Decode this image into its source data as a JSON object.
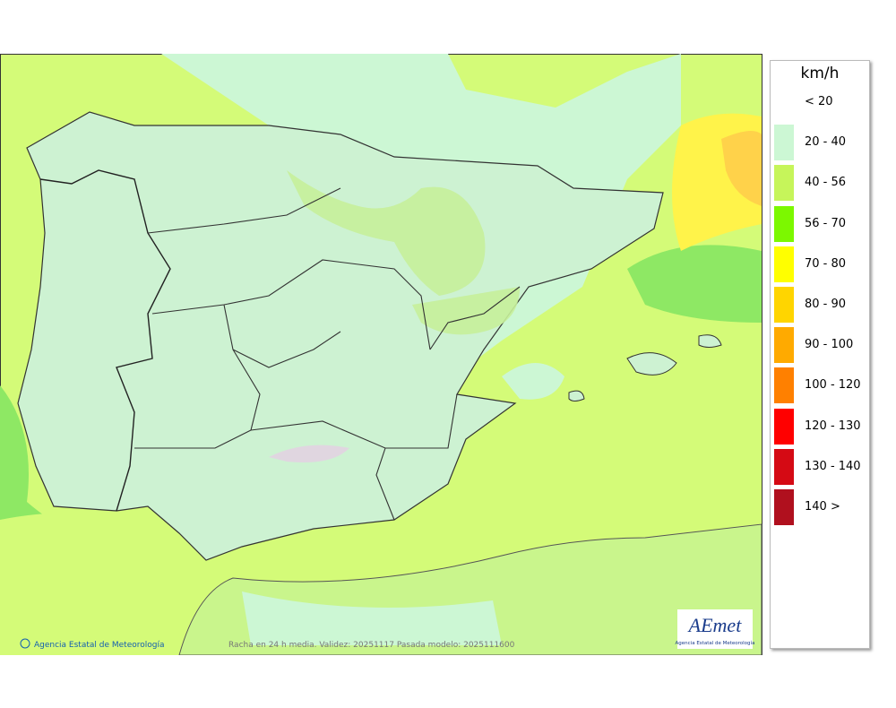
{
  "legend": {
    "unit": "km/h",
    "items": [
      {
        "label": "< 20",
        "color": "#ffffff"
      },
      {
        "label": "20 - 40",
        "color": "#ccf7d4"
      },
      {
        "label": "40 - 56",
        "color": "#c6f55a"
      },
      {
        "label": "56 - 70",
        "color": "#7cf800"
      },
      {
        "label": "70 - 80",
        "color": "#ffff00"
      },
      {
        "label": "80 - 90",
        "color": "#ffd500"
      },
      {
        "label": "90 - 100",
        "color": "#ffaa00"
      },
      {
        "label": "100 - 120",
        "color": "#ff8000"
      },
      {
        "label": "120 - 130",
        "color": "#ff0000"
      },
      {
        "label": "130 - 140",
        "color": "#d50a14"
      },
      {
        "label": "140 >",
        "color": "#b0101e"
      }
    ]
  },
  "footer": {
    "credit": "Agencia Estatal de Meteorología",
    "caption": "Racha en 24 h media. Validez: 20251117 Pasada modelo: 2025111600"
  },
  "logo": {
    "name": "AEmet",
    "subtitle": "Agencia Estatal de Meteorología"
  }
}
